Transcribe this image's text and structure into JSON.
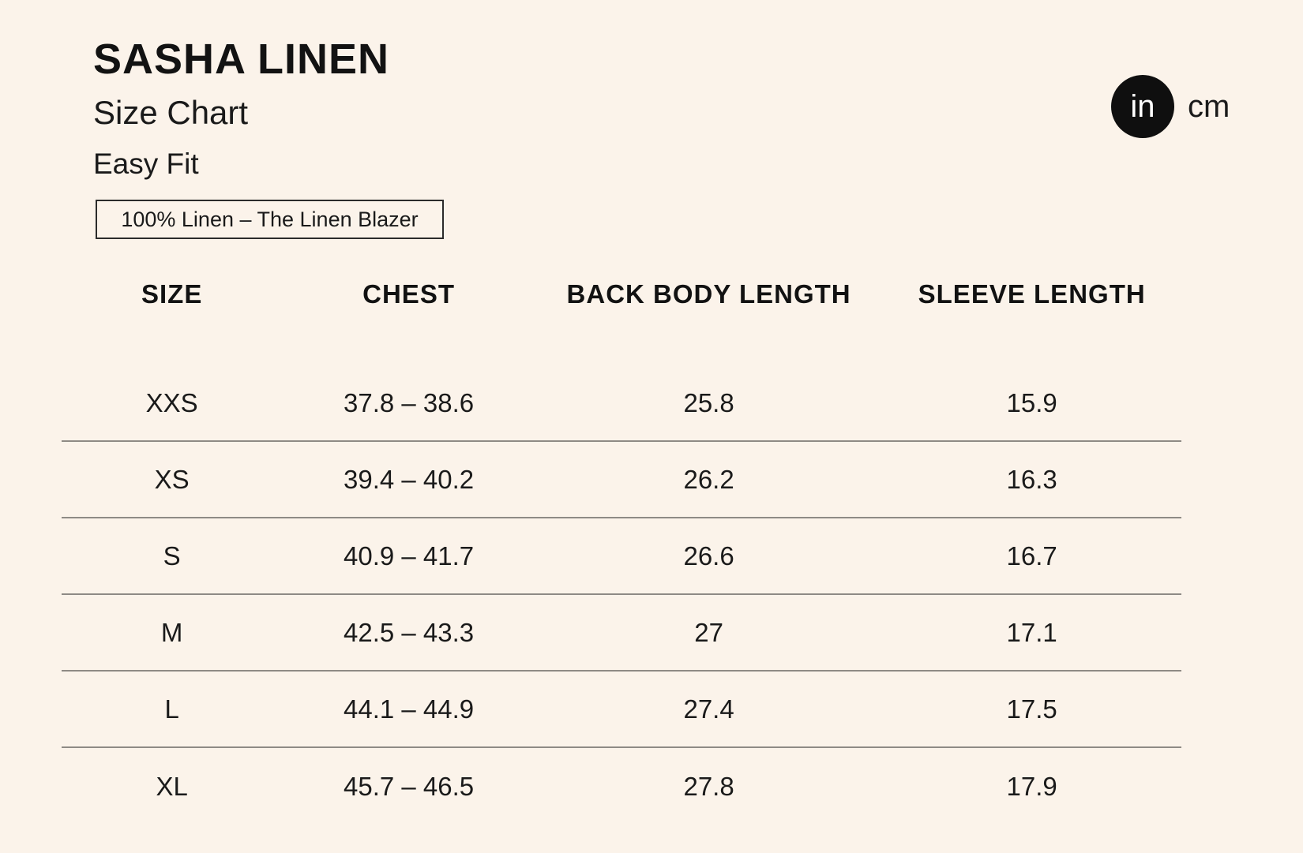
{
  "header": {
    "title": "SASHA LINEN",
    "subtitle": "Size Chart",
    "fit": "Easy Fit",
    "fabric_note": "100% Linen – The Linen Blazer"
  },
  "unit_toggle": {
    "options": [
      "in",
      "cm"
    ],
    "selected": "in"
  },
  "table": {
    "columns": [
      "SIZE",
      "CHEST",
      "BACK BODY LENGTH",
      "SLEEVE LENGTH"
    ],
    "rows": [
      {
        "size": "XXS",
        "chest": "37.8 – 38.6",
        "back_body_length": "25.8",
        "sleeve_length": "15.9"
      },
      {
        "size": "XS",
        "chest": "39.4 – 40.2",
        "back_body_length": "26.2",
        "sleeve_length": "16.3"
      },
      {
        "size": "S",
        "chest": "40.9 – 41.7",
        "back_body_length": "26.6",
        "sleeve_length": "16.7"
      },
      {
        "size": "M",
        "chest": "42.5 – 43.3",
        "back_body_length": "27",
        "sleeve_length": "17.1"
      },
      {
        "size": "L",
        "chest": "44.1 – 44.9",
        "back_body_length": "27.4",
        "sleeve_length": "17.5"
      },
      {
        "size": "XL",
        "chest": "45.7 – 46.5",
        "back_body_length": "27.8",
        "sleeve_length": "17.9"
      }
    ]
  },
  "colors": {
    "background": "#FBF3EA",
    "text": "#141414",
    "divider": "#8E8A85",
    "box_border": "#2B2B2B",
    "toggle_circle": "#0F0F0F",
    "toggle_circle_text": "#FFFFFF"
  }
}
